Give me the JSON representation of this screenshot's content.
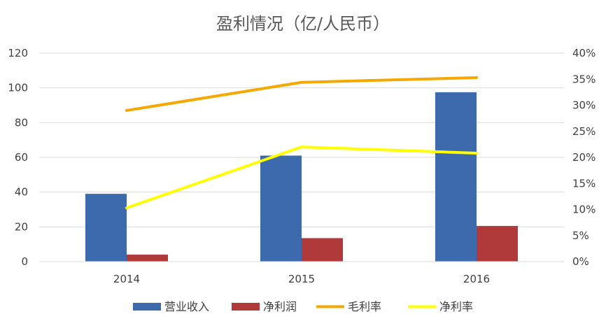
{
  "chart_data": {
    "type": "bar",
    "title": "盈利情况（亿/人民币）",
    "categories": [
      "2014",
      "2015",
      "2016"
    ],
    "ylim": [
      0,
      120
    ],
    "y_ticks": [
      "0",
      "20",
      "40",
      "60",
      "80",
      "100",
      "120"
    ],
    "y2lim": [
      0,
      40
    ],
    "y2_ticks": [
      "0%",
      "5%",
      "10%",
      "15%",
      "20%",
      "25%",
      "30%",
      "35%",
      "40%"
    ],
    "grid": true,
    "legend_position": "bottom",
    "series": [
      {
        "name": "营业收入",
        "kind": "bar",
        "axis": "left",
        "color": "#3d6aad",
        "values": [
          39,
          61,
          97.5
        ]
      },
      {
        "name": "净利润",
        "kind": "bar",
        "axis": "left",
        "color": "#b0393a",
        "values": [
          4,
          13.5,
          20.5
        ]
      },
      {
        "name": "毛利率",
        "kind": "line",
        "axis": "right",
        "unit": "%",
        "color": "#f5a800",
        "values": [
          29.0,
          34.4,
          35.3
        ]
      },
      {
        "name": "净利率",
        "kind": "line",
        "axis": "right",
        "unit": "%",
        "color": "#ffff00",
        "values": [
          10.3,
          22.0,
          20.8
        ]
      }
    ]
  }
}
